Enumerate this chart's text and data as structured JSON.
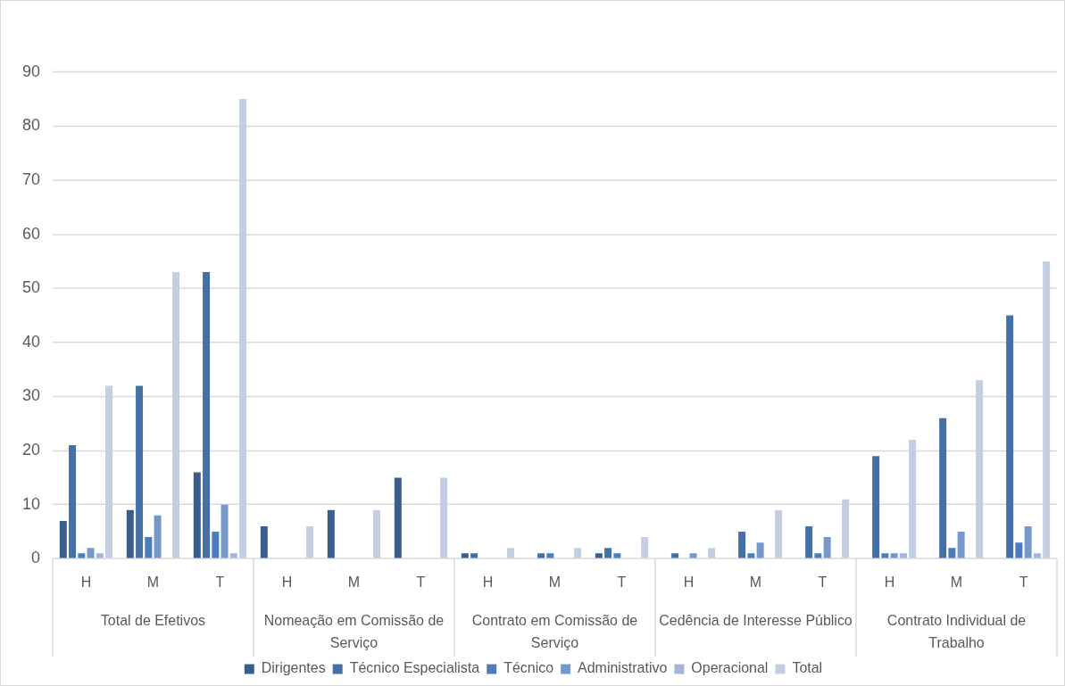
{
  "chart_data": {
    "type": "bar",
    "categories": [
      "H",
      "M",
      "T",
      "H",
      "M",
      "T",
      "H",
      "M",
      "T",
      "H",
      "M",
      "T",
      "H",
      "M",
      "T"
    ],
    "annotations": [
      "Total de Efetivos",
      "Nomeação em Comissão de Serviço",
      "Contrato em Comissão de Serviço",
      "Cedência de Interesse Público",
      "Contrato Individual de Trabalho"
    ],
    "series": [
      {
        "name": "Dirigentes",
        "color": "#3a5e8c",
        "values": [
          7,
          9,
          16,
          6,
          9,
          15,
          1,
          0,
          1,
          0,
          0,
          0,
          0,
          0,
          0
        ]
      },
      {
        "name": "Técnico Especialista",
        "color": "#4470a5",
        "values": [
          21,
          32,
          53,
          0,
          0,
          0,
          1,
          1,
          2,
          1,
          5,
          6,
          19,
          26,
          45
        ]
      },
      {
        "name": "Técnico",
        "color": "#4a7ebb",
        "values": [
          1,
          4,
          5,
          0,
          0,
          0,
          0,
          1,
          1,
          0,
          1,
          1,
          1,
          2,
          3
        ]
      },
      {
        "name": "Administrativo",
        "color": "#7698c9",
        "values": [
          2,
          8,
          10,
          0,
          0,
          0,
          0,
          0,
          0,
          1,
          3,
          4,
          1,
          5,
          6
        ]
      },
      {
        "name": "Operacional",
        "color": "#a3b5d9",
        "values": [
          1,
          0,
          1,
          0,
          0,
          0,
          0,
          0,
          0,
          0,
          0,
          0,
          1,
          0,
          1
        ]
      },
      {
        "name": "Total",
        "color": "#c3cee3",
        "values": [
          32,
          53,
          85,
          6,
          9,
          15,
          2,
          2,
          4,
          2,
          9,
          11,
          22,
          33,
          55
        ]
      }
    ],
    "ylim": [
      0,
      90
    ],
    "yticks": [
      0,
      10,
      20,
      30,
      40,
      50,
      60,
      70,
      80,
      90
    ],
    "grid": "y",
    "legend": "bottom"
  }
}
